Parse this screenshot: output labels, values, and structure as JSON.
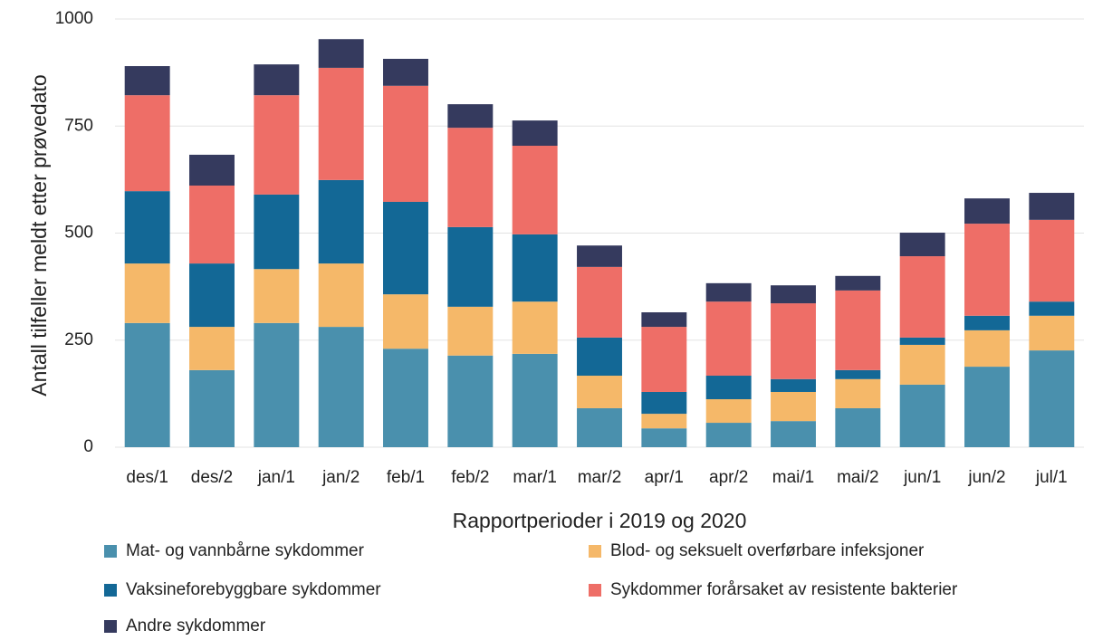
{
  "chart_data": {
    "type": "stacked_bar",
    "y_label": "Antall tilfeller meldt etter prøvedato",
    "x_label": "Rapportperioder i 2019 og 2020",
    "categories": [
      "des/1",
      "des/2",
      "jan/1",
      "jan/2",
      "feb/1",
      "feb/2",
      "mar/1",
      "mar/2",
      "apr/1",
      "apr/2",
      "mai/1",
      "mai/2",
      "jun/1",
      "jun/2",
      "jul/1"
    ],
    "series": [
      {
        "name": "Mat- og vannbårne sykdommer",
        "color": "#4a90ad",
        "values": [
          290,
          180,
          290,
          281,
          230,
          214,
          218,
          91,
          44,
          57,
          61,
          91,
          146,
          188,
          226
        ]
      },
      {
        "name": "Blod- og seksuelt overførbare infeksjoner",
        "color": "#f5b869",
        "values": [
          139,
          101,
          126,
          148,
          127,
          114,
          122,
          76,
          34,
          55,
          68,
          68,
          93,
          85,
          81
        ]
      },
      {
        "name": "Vaksineforebyggbare sykdommer",
        "color": "#136896",
        "values": [
          169,
          148,
          174,
          195,
          216,
          186,
          157,
          89,
          51,
          55,
          30,
          21,
          17,
          34,
          33
        ]
      },
      {
        "name": "Sykdommer forårsaket av resistente bakterier",
        "color": "#ee6e67",
        "values": [
          224,
          182,
          232,
          262,
          271,
          232,
          207,
          165,
          152,
          173,
          177,
          186,
          190,
          215,
          191
        ]
      },
      {
        "name": "Andre sykdommer",
        "color": "#353a5e",
        "values": [
          68,
          72,
          72,
          67,
          63,
          55,
          59,
          50,
          34,
          43,
          42,
          34,
          55,
          59,
          63
        ]
      }
    ],
    "ylim": [
      0,
      1000
    ],
    "yticks": [
      0,
      250,
      500,
      750,
      1000
    ],
    "grid": true
  }
}
